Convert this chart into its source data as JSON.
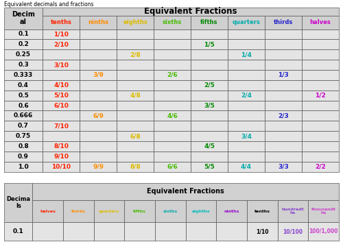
{
  "title": "Equivalent decimals and fractions",
  "table1": {
    "col_labels": [
      "Decim\nal",
      "tenths",
      "ninths",
      "eighths",
      "sixths",
      "fifths",
      "quarters",
      "thirds",
      "halves"
    ],
    "col_colors": [
      "black",
      "#ff2200",
      "#ff8c00",
      "#ddbb00",
      "#44bb00",
      "#008800",
      "#00aaaa",
      "#2222cc",
      "#cc00cc"
    ],
    "col_keys": [
      "decimal",
      "tenths",
      "ninths",
      "eighths",
      "sixths",
      "fifths",
      "quarters",
      "thirds",
      "halves"
    ],
    "rows": [
      {
        "decimal": "0.1",
        "tenths": "1/10",
        "ninths": "",
        "eighths": "",
        "sixths": "",
        "fifths": "",
        "quarters": "",
        "thirds": "",
        "halves": ""
      },
      {
        "decimal": "0.2",
        "tenths": "2/10",
        "ninths": "",
        "eighths": "",
        "sixths": "",
        "fifths": "1/5",
        "quarters": "",
        "thirds": "",
        "halves": ""
      },
      {
        "decimal": "0.25",
        "tenths": "",
        "ninths": "",
        "eighths": "2/8",
        "sixths": "",
        "fifths": "",
        "quarters": "1/4",
        "thirds": "",
        "halves": ""
      },
      {
        "decimal": "0.3",
        "tenths": "3/10",
        "ninths": "",
        "eighths": "",
        "sixths": "",
        "fifths": "",
        "quarters": "",
        "thirds": "",
        "halves": ""
      },
      {
        "decimal": "0.333",
        "tenths": "",
        "ninths": "3/9",
        "eighths": "",
        "sixths": "2/6",
        "fifths": "",
        "quarters": "",
        "thirds": "1/3",
        "halves": ""
      },
      {
        "decimal": "0.4",
        "tenths": "4/10",
        "ninths": "",
        "eighths": "",
        "sixths": "",
        "fifths": "2/5",
        "quarters": "",
        "thirds": "",
        "halves": ""
      },
      {
        "decimal": "0.5",
        "tenths": "5/10",
        "ninths": "",
        "eighths": "4/8",
        "sixths": "",
        "fifths": "",
        "quarters": "2/4",
        "thirds": "",
        "halves": "1/2"
      },
      {
        "decimal": "0.6",
        "tenths": "6/10",
        "ninths": "",
        "eighths": "",
        "sixths": "",
        "fifths": "3/5",
        "quarters": "",
        "thirds": "",
        "halves": ""
      },
      {
        "decimal": "0.666",
        "tenths": "",
        "ninths": "6/9",
        "eighths": "",
        "sixths": "4/6",
        "fifths": "",
        "quarters": "",
        "thirds": "2/3",
        "halves": ""
      },
      {
        "decimal": "0.7",
        "tenths": "7/10",
        "ninths": "",
        "eighths": "",
        "sixths": "",
        "fifths": "",
        "quarters": "",
        "thirds": "",
        "halves": ""
      },
      {
        "decimal": "0.75",
        "tenths": "",
        "ninths": "",
        "eighths": "6/8",
        "sixths": "",
        "fifths": "",
        "quarters": "3/4",
        "thirds": "",
        "halves": ""
      },
      {
        "decimal": "0.8",
        "tenths": "8/10",
        "ninths": "",
        "eighths": "",
        "sixths": "",
        "fifths": "4/5",
        "quarters": "",
        "thirds": "",
        "halves": ""
      },
      {
        "decimal": "0.9",
        "tenths": "9/10",
        "ninths": "",
        "eighths": "",
        "sixths": "",
        "fifths": "",
        "quarters": "",
        "thirds": "",
        "halves": ""
      },
      {
        "decimal": "1.0",
        "tenths": "10/10",
        "ninths": "9/9",
        "eighths": "8/8",
        "sixths": "6/6",
        "fifths": "5/5",
        "quarters": "4/4",
        "thirds": "3/3",
        "halves": "2/2"
      }
    ]
  },
  "table2": {
    "col_labels": [
      "Decima\nls",
      "halves",
      "thirds",
      "quarters",
      "fifths",
      "sixths",
      "eighths",
      "ninths",
      "tenths",
      "hundredt\nhs",
      "thousandt\nhs"
    ],
    "col_colors": [
      "black",
      "#ff2200",
      "#ff8c00",
      "#ddbb00",
      "#44bb00",
      "#00aaaa",
      "#00bbbb",
      "#9900cc",
      "#000000",
      "#8844cc",
      "#cc44cc"
    ],
    "col_keys": [
      "decimal",
      "halves",
      "thirds",
      "quarters",
      "fifths",
      "sixths",
      "eighths",
      "ninths",
      "tenths",
      "hundredths",
      "thousandths"
    ],
    "rows": [
      {
        "decimal": "0.1",
        "halves": "",
        "thirds": "",
        "quarters": "",
        "fifths": "",
        "sixths": "",
        "eighths": "",
        "ninths": "",
        "tenths": "1/10",
        "hundredths": "10/100",
        "thousandths": "100/1,000"
      }
    ]
  },
  "header_bg": "#d0d0d0",
  "cell_bg": "#e4e4e4",
  "border_color": "#888888",
  "white_bg": "#ffffff"
}
